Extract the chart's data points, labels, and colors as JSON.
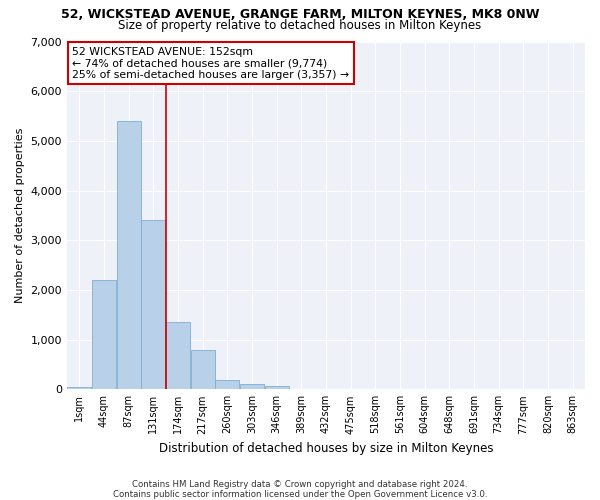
{
  "title": "52, WICKSTEAD AVENUE, GRANGE FARM, MILTON KEYNES, MK8 0NW",
  "subtitle": "Size of property relative to detached houses in Milton Keynes",
  "xlabel": "Distribution of detached houses by size in Milton Keynes",
  "ylabel": "Number of detached properties",
  "footer_line1": "Contains HM Land Registry data © Crown copyright and database right 2024.",
  "footer_line2": "Contains public sector information licensed under the Open Government Licence v3.0.",
  "annotation_line1": "52 WICKSTEAD AVENUE: 152sqm",
  "annotation_line2": "← 74% of detached houses are smaller (9,774)",
  "annotation_line3": "25% of semi-detached houses are larger (3,357) →",
  "bar_color": "#b8d0e8",
  "bar_edge_color": "#7aafd4",
  "vline_color": "#cc0000",
  "vline_index": 3.5,
  "categories": [
    "1sqm",
    "44sqm",
    "87sqm",
    "131sqm",
    "174sqm",
    "217sqm",
    "260sqm",
    "303sqm",
    "346sqm",
    "389sqm",
    "432sqm",
    "475sqm",
    "518sqm",
    "561sqm",
    "604sqm",
    "648sqm",
    "691sqm",
    "734sqm",
    "777sqm",
    "820sqm",
    "863sqm"
  ],
  "bar_heights": [
    50,
    2200,
    5400,
    3400,
    1350,
    800,
    180,
    110,
    60,
    10,
    5,
    2,
    1,
    0,
    0,
    0,
    0,
    0,
    0,
    0,
    0
  ],
  "ylim": [
    0,
    7000
  ],
  "yticks": [
    0,
    1000,
    2000,
    3000,
    4000,
    5000,
    6000,
    7000
  ],
  "bg_color": "#eef2f8",
  "annotation_box_color": "white",
  "annotation_box_edge": "#cc0000",
  "title_fontsize": 9,
  "subtitle_fontsize": 8.5,
  "ylabel_fontsize": 8,
  "xlabel_fontsize": 8.5,
  "footer_fontsize": 6.2,
  "annot_fontsize": 7.8
}
